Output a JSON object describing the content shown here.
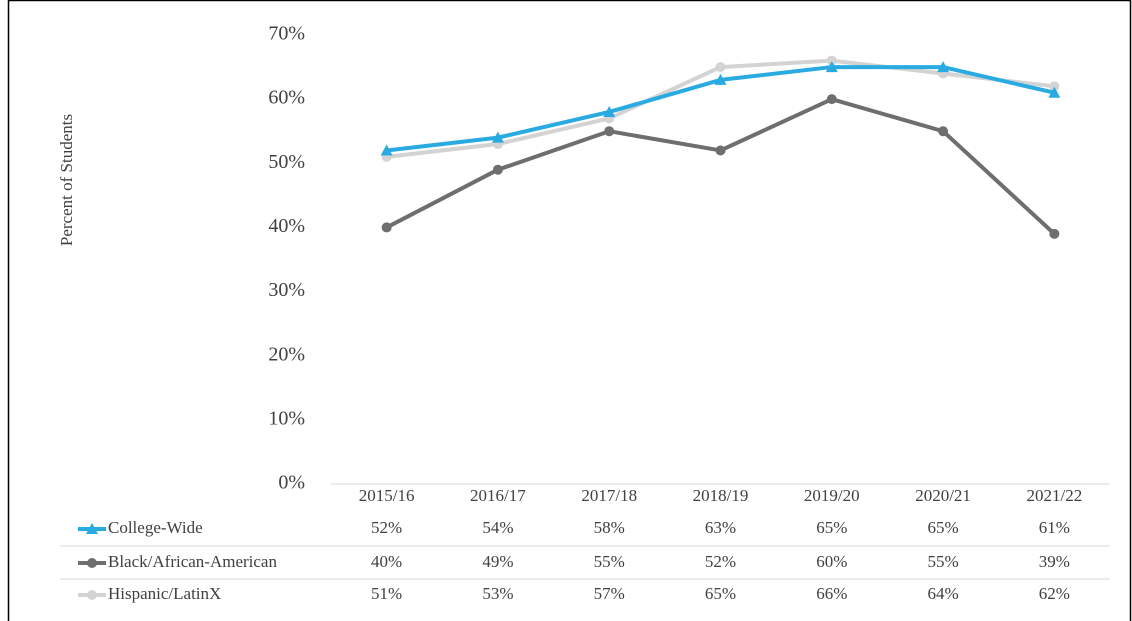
{
  "chart_data": {
    "type": "line",
    "y_label": "Percent of Students",
    "categories": [
      "2015/16",
      "2016/17",
      "2017/18",
      "2018/19",
      "2019/20",
      "2020/21",
      "2021/22"
    ],
    "series": [
      {
        "name": "College-Wide",
        "color": "#29abe2",
        "marker": "triangle",
        "values": [
          52,
          54,
          58,
          63,
          65,
          65,
          61
        ],
        "value_labels": [
          "52%",
          "54%",
          "58%",
          "63%",
          "65%",
          "65%",
          "61%"
        ]
      },
      {
        "name": "Black/African-American",
        "color": "#6e6e6e",
        "marker": "circle",
        "values": [
          40,
          49,
          55,
          52,
          60,
          55,
          39
        ],
        "value_labels": [
          "40%",
          "49%",
          "55%",
          "52%",
          "60%",
          "55%",
          "39%"
        ]
      },
      {
        "name": "Hispanic/LatinX",
        "color": "#d3d3d3",
        "marker": "circle",
        "values": [
          51,
          53,
          57,
          65,
          66,
          64,
          62
        ],
        "value_labels": [
          "51%",
          "53%",
          "57%",
          "65%",
          "66%",
          "64%",
          "62%"
        ]
      }
    ],
    "ylim": [
      0,
      70
    ],
    "yticks": [
      {
        "value": 0,
        "label": "0%"
      },
      {
        "value": 10,
        "label": "10%"
      },
      {
        "value": 20,
        "label": "20%"
      },
      {
        "value": 30,
        "label": "30%"
      },
      {
        "value": 40,
        "label": "40%"
      },
      {
        "value": 50,
        "label": "50%"
      },
      {
        "value": 60,
        "label": "60%"
      },
      {
        "value": 70,
        "label": "70%"
      }
    ],
    "grid": false
  }
}
